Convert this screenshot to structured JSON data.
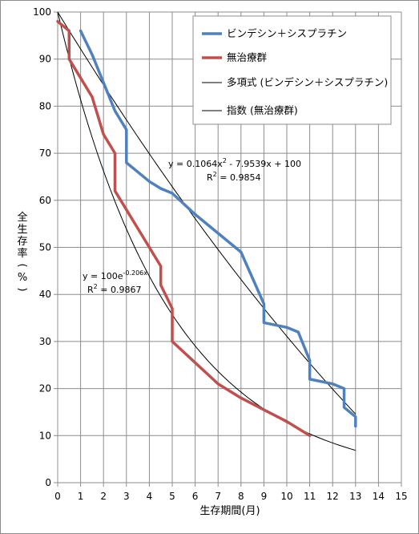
{
  "chart_data": {
    "type": "line",
    "xlabel": "生存期間(月)",
    "ylabel": "全生存率(%)",
    "xlim": [
      0,
      15
    ],
    "ylim": [
      0,
      100
    ],
    "x_ticks": [
      "0",
      "1",
      "2",
      "3",
      "4",
      "5",
      "6",
      "7",
      "8",
      "9",
      "10",
      "11",
      "12",
      "13",
      "14",
      "15"
    ],
    "y_ticks": [
      "0",
      "10",
      "20",
      "30",
      "40",
      "50",
      "60",
      "70",
      "80",
      "90",
      "100"
    ],
    "grid": true,
    "legend_position": "top-right",
    "series": [
      {
        "name": "ビンデシン＋シスプラチン",
        "color": "#4f81bd",
        "points": [
          [
            1,
            96
          ],
          [
            1.5,
            91
          ],
          [
            2,
            85
          ],
          [
            2.5,
            79
          ],
          [
            3,
            75
          ],
          [
            3,
            68
          ],
          [
            3.5,
            66
          ],
          [
            4,
            64
          ],
          [
            4.5,
            62.5
          ],
          [
            5,
            61.5
          ],
          [
            6,
            57
          ],
          [
            7,
            53
          ],
          [
            8,
            49
          ],
          [
            9,
            38
          ],
          [
            9,
            34
          ],
          [
            10,
            33
          ],
          [
            10.5,
            32
          ],
          [
            11,
            26
          ],
          [
            11,
            22
          ],
          [
            12,
            21
          ],
          [
            12.5,
            20
          ],
          [
            12.5,
            16
          ],
          [
            13,
            14
          ],
          [
            13,
            12
          ]
        ]
      },
      {
        "name": "無治療群",
        "color": "#c0504d",
        "points": [
          [
            0,
            98
          ],
          [
            0.5,
            96
          ],
          [
            0.5,
            90
          ],
          [
            1,
            86
          ],
          [
            1.5,
            82
          ],
          [
            2,
            74
          ],
          [
            2.5,
            70
          ],
          [
            2.5,
            62
          ],
          [
            3,
            58
          ],
          [
            3.5,
            54
          ],
          [
            4,
            50
          ],
          [
            4.5,
            46
          ],
          [
            4.5,
            42
          ],
          [
            5,
            37
          ],
          [
            5,
            30
          ],
          [
            6,
            25.5
          ],
          [
            7,
            21
          ],
          [
            8,
            18
          ],
          [
            9,
            15.5
          ],
          [
            10,
            13
          ],
          [
            11,
            10
          ]
        ]
      }
    ],
    "trendlines": [
      {
        "name": "多項式 (ビンデシン＋シスプラチン)",
        "type": "polynomial",
        "color": "#000000",
        "coefficients": [
          0.1064,
          -7.9539,
          100
        ],
        "x_range": [
          0,
          13
        ],
        "equation_parts": [
          "y = 0.1064x",
          "2",
          " - 7.9539x + 100"
        ],
        "r2_parts": [
          "R",
          "2",
          " = 0.9854"
        ]
      },
      {
        "name": "指数 (無治療群)",
        "type": "exponential",
        "color": "#000000",
        "a": 100,
        "b": -0.206,
        "x_range": [
          0,
          13
        ],
        "equation_parts": [
          "y = 100e",
          "-0.206x"
        ],
        "r2_parts": [
          "R",
          "2",
          " = 0.9867"
        ]
      }
    ]
  }
}
